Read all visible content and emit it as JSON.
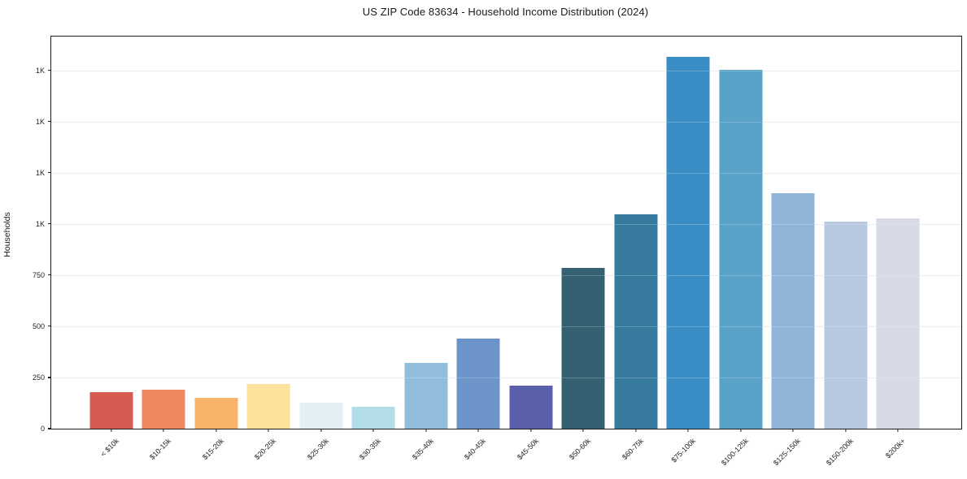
{
  "chart_data": {
    "type": "bar",
    "title": "US ZIP Code 83634 - Household Income Distribution (2024)",
    "xlabel": "",
    "ylabel": "Households",
    "categories": [
      "< $10k",
      "$10-15k",
      "$15-20k",
      "$20-25k",
      "$25-30k",
      "$30-35k",
      "$35-40k",
      "$40-45k",
      "$45-50k",
      "$50-60k",
      "$60-75k",
      "$75-100k",
      "$100-125k",
      "$125-150k",
      "$150-200k",
      "$200k+"
    ],
    "values": [
      180,
      190,
      149,
      218,
      127,
      106,
      321,
      440,
      210,
      784,
      1046,
      1815,
      1754,
      1151,
      1010,
      1027
    ],
    "bar_colors": [
      "#d65c52",
      "#f0885f",
      "#f9b269",
      "#fde29c",
      "#e2eff5",
      "#b3dde9",
      "#92bcdc",
      "#6d94c9",
      "#5a5fac",
      "#356072",
      "#367a9e",
      "#3a8ec5",
      "#58a2c8",
      "#90b5d9",
      "#b8c8e0",
      "#d7d9e7"
    ],
    "ylim": [
      0,
      1915
    ],
    "yticks": [
      {
        "value": 0,
        "label": "0"
      },
      {
        "value": 250,
        "label": "250"
      },
      {
        "value": 500,
        "label": "500"
      },
      {
        "value": 750,
        "label": "750"
      },
      {
        "value": 1000,
        "label": "1K"
      },
      {
        "value": 1250,
        "label": "1K"
      },
      {
        "value": 1500,
        "label": "1K"
      },
      {
        "value": 1750,
        "label": "1K"
      }
    ],
    "grid": "horizontal",
    "legend": "none",
    "background_color": "#ffffff"
  }
}
